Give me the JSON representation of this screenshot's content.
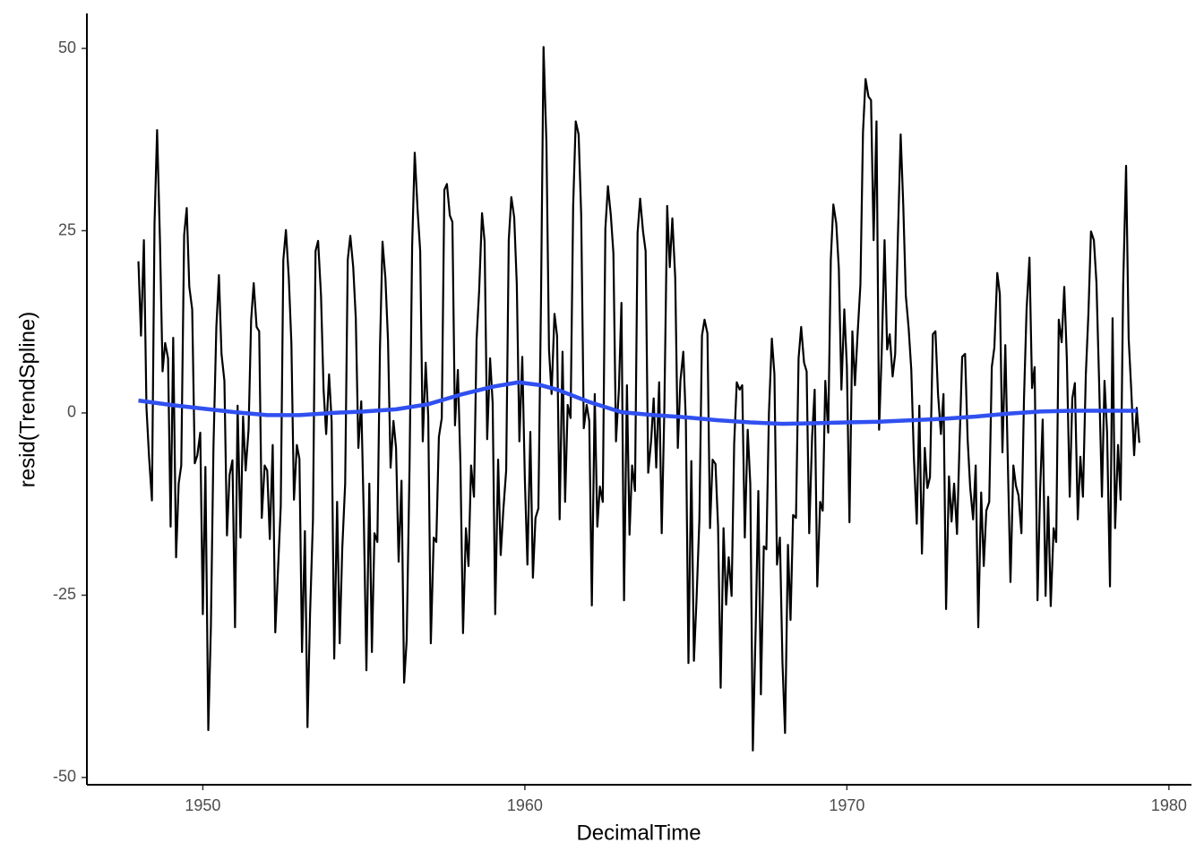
{
  "chart_data": {
    "type": "line",
    "x_label": "DecimalTime",
    "y_label": "resid(TrendSpline)",
    "xlim": [
      1946.4,
      1980.7
    ],
    "ylim": [
      -51,
      54.8
    ],
    "xticks": [
      1950,
      1960,
      1970,
      1980
    ],
    "yticks": [
      -50,
      -25,
      0,
      25,
      50
    ],
    "grid": false,
    "series": [
      {
        "color": "#000000",
        "width": 2.2,
        "x": [
          1948,
          1948.08,
          1948.17,
          1948.25,
          1948.33,
          1948.42,
          1948.5,
          1948.58,
          1948.67,
          1948.75,
          1948.83,
          1948.92,
          1949,
          1949.08,
          1949.17,
          1949.25,
          1949.33,
          1949.42,
          1949.5,
          1949.58,
          1949.67,
          1949.75,
          1949.83,
          1949.92,
          1950,
          1950.08,
          1950.17,
          1950.25,
          1950.33,
          1950.42,
          1950.5,
          1950.58,
          1950.67,
          1950.75,
          1950.83,
          1950.92,
          1951,
          1951.08,
          1951.17,
          1951.25,
          1951.33,
          1951.42,
          1951.5,
          1951.58,
          1951.67,
          1951.75,
          1951.83,
          1951.92,
          1952,
          1952.08,
          1952.17,
          1952.25,
          1952.33,
          1952.42,
          1952.5,
          1952.58,
          1952.67,
          1952.75,
          1952.83,
          1952.92,
          1953,
          1953.08,
          1953.17,
          1953.25,
          1953.33,
          1953.42,
          1953.5,
          1953.58,
          1953.67,
          1953.75,
          1953.83,
          1953.92,
          1954,
          1954.08,
          1954.17,
          1954.25,
          1954.33,
          1954.42,
          1954.5,
          1954.58,
          1954.67,
          1954.75,
          1954.83,
          1954.92,
          1955,
          1955.08,
          1955.17,
          1955.25,
          1955.33,
          1955.42,
          1955.5,
          1955.58,
          1955.67,
          1955.75,
          1955.83,
          1955.92,
          1956,
          1956.08,
          1956.17,
          1956.25,
          1956.33,
          1956.42,
          1956.5,
          1956.58,
          1956.67,
          1956.75,
          1956.83,
          1956.92,
          1957,
          1957.08,
          1957.17,
          1957.25,
          1957.33,
          1957.42,
          1957.5,
          1957.58,
          1957.67,
          1957.75,
          1957.83,
          1957.92,
          1958,
          1958.08,
          1958.17,
          1958.25,
          1958.33,
          1958.42,
          1958.5,
          1958.58,
          1958.67,
          1958.75,
          1958.83,
          1958.92,
          1959,
          1959.08,
          1959.17,
          1959.25,
          1959.33,
          1959.42,
          1959.5,
          1959.58,
          1959.67,
          1959.75,
          1959.83,
          1959.92,
          1960,
          1960.08,
          1960.17,
          1960.25,
          1960.33,
          1960.42,
          1960.5,
          1960.58,
          1960.67,
          1960.75,
          1960.83,
          1960.92,
          1961,
          1961.08,
          1961.17,
          1961.25,
          1961.33,
          1961.42,
          1961.5,
          1961.58,
          1961.67,
          1961.75,
          1961.83,
          1961.92,
          1962,
          1962.08,
          1962.17,
          1962.25,
          1962.33,
          1962.42,
          1962.5,
          1962.58,
          1962.67,
          1962.75,
          1962.83,
          1962.92,
          1963,
          1963.08,
          1963.17,
          1963.25,
          1963.33,
          1963.42,
          1963.5,
          1963.58,
          1963.67,
          1963.75,
          1963.83,
          1963.92,
          1964,
          1964.08,
          1964.17,
          1964.25,
          1964.33,
          1964.42,
          1964.5,
          1964.58,
          1964.67,
          1964.75,
          1964.83,
          1964.92,
          1965,
          1965.08,
          1965.17,
          1965.25,
          1965.33,
          1965.42,
          1965.5,
          1965.58,
          1965.67,
          1965.75,
          1965.83,
          1965.92,
          1966,
          1966.08,
          1966.17,
          1966.25,
          1966.33,
          1966.42,
          1966.5,
          1966.58,
          1966.67,
          1966.75,
          1966.83,
          1966.92,
          1967,
          1967.08,
          1967.17,
          1967.25,
          1967.33,
          1967.42,
          1967.5,
          1967.58,
          1967.67,
          1967.75,
          1967.83,
          1967.92,
          1968,
          1968.08,
          1968.17,
          1968.25,
          1968.33,
          1968.42,
          1968.5,
          1968.58,
          1968.67,
          1968.75,
          1968.83,
          1968.92,
          1969,
          1969.08,
          1969.17,
          1969.25,
          1969.33,
          1969.42,
          1969.5,
          1969.58,
          1969.67,
          1969.75,
          1969.83,
          1969.92,
          1970,
          1970.08,
          1970.17,
          1970.25,
          1970.33,
          1970.42,
          1970.5,
          1970.58,
          1970.67,
          1970.75,
          1970.83,
          1970.92,
          1971,
          1971.08,
          1971.17,
          1971.25,
          1971.33,
          1971.42,
          1971.5,
          1971.58,
          1971.67,
          1971.75,
          1971.83,
          1971.92,
          1972,
          1972.08,
          1972.17,
          1972.25,
          1972.33,
          1972.42,
          1972.5,
          1972.58,
          1972.67,
          1972.75,
          1972.83,
          1972.92,
          1973,
          1973.08,
          1973.17,
          1973.25,
          1973.33,
          1973.42,
          1973.5,
          1973.58,
          1973.67,
          1973.75,
          1973.83,
          1973.92,
          1974,
          1974.08,
          1974.17,
          1974.25,
          1974.33,
          1974.42,
          1974.5,
          1974.58,
          1974.67,
          1974.75,
          1974.83,
          1974.92,
          1975,
          1975.08,
          1975.17,
          1975.25,
          1975.33,
          1975.42,
          1975.5,
          1975.58,
          1975.67,
          1975.75,
          1975.83,
          1975.92,
          1976,
          1976.08,
          1976.17,
          1976.25,
          1976.33,
          1976.42,
          1976.5,
          1976.58,
          1976.67,
          1976.75,
          1976.83,
          1976.92,
          1977,
          1977.08,
          1977.17,
          1977.25,
          1977.33,
          1977.42,
          1977.5,
          1977.58,
          1977.67,
          1977.75,
          1977.83,
          1977.92,
          1978,
          1978.08,
          1978.17,
          1978.25,
          1978.33,
          1978.42,
          1978.5,
          1978.58,
          1978.67,
          1978.75,
          1978.83,
          1978.92,
          1979,
          1979.08
        ],
        "values": [
          20.8,
          10.6,
          23.7,
          0.7,
          -6,
          -12,
          26,
          38.8,
          23.5,
          5.7,
          9.6,
          7.5,
          -15.6,
          10.3,
          -19.8,
          -9.7,
          -7.2,
          24.4,
          28.1,
          17.3,
          14.2,
          -6.9,
          -5.8,
          -2.7,
          -27.6,
          -7.4,
          -43.5,
          -29.4,
          -4.8,
          11.8,
          18.9,
          8.1,
          4.4,
          -16.8,
          -8.5,
          -6.5,
          -29.4,
          1,
          -17.1,
          -0.5,
          -7.9,
          -2.3,
          12.7,
          17.8,
          11.8,
          11.2,
          -14.4,
          -7.2,
          -7.9,
          -17.3,
          -4.4,
          -30.1,
          -22,
          -12.8,
          21,
          25.1,
          18.5,
          9.6,
          -11.9,
          -4.4,
          -6.3,
          -32.8,
          -16.2,
          -43.1,
          -27.5,
          -14.6,
          22.2,
          23.6,
          16.1,
          3.2,
          -2.9,
          5.3,
          -1.1,
          -33.7,
          -12.2,
          -31.6,
          -18.6,
          -9.7,
          21,
          24.3,
          20,
          13,
          -4.8,
          1.6,
          -14.6,
          -35.3,
          -9.7,
          -32.8,
          -16.5,
          -17.7,
          8.7,
          23.5,
          18.5,
          10,
          -7.5,
          -1.1,
          -4.8,
          -20.4,
          -9.3,
          -37,
          -31.2,
          -7.2,
          22.9,
          35.7,
          27.8,
          22.2,
          -3.9,
          6.9,
          -0.5,
          -31.6,
          -17.1,
          -17.7,
          -3.3,
          -0.7,
          30.6,
          31.4,
          27.1,
          26.2,
          -1.7,
          5.9,
          -7.2,
          -30.2,
          -15.8,
          -21,
          -7.2,
          -11.5,
          10,
          16.7,
          27.4,
          23.5,
          -3.6,
          7.5,
          1.4,
          -27.6,
          -6.4,
          -19.5,
          -13.4,
          -7.9,
          23.7,
          29.6,
          26.8,
          17.6,
          -3.9,
          7.7,
          -9.1,
          -20.8,
          -2.6,
          -22.6,
          -14.4,
          -13.1,
          14.9,
          50.2,
          37,
          8.7,
          2.6,
          13.6,
          10.6,
          -14.6,
          8.4,
          -12.2,
          1.1,
          -0.7,
          28.4,
          40,
          38.2,
          27.1,
          -2.1,
          1.1,
          -1.1,
          -26.4,
          2.6,
          -15.6,
          -10.1,
          -12.2,
          25.3,
          31.1,
          27.1,
          21.9,
          -3.9,
          3.2,
          15.1,
          -25.7,
          3.8,
          -16.7,
          -7.2,
          -10.7,
          24.7,
          29.4,
          24.9,
          22.2,
          -8.2,
          -3.9,
          2,
          -7.5,
          4.2,
          -16.5,
          0.1,
          28.4,
          20,
          26.7,
          18.5,
          -4.8,
          4.4,
          8.4,
          -1.1,
          -34.3,
          -6.6,
          -34,
          -25.7,
          -14.6,
          10.6,
          12.8,
          10.9,
          -15.8,
          -6.4,
          -7,
          -15.6,
          -37.7,
          -15.8,
          -26.3,
          -19.8,
          -25.1,
          -4.2,
          4.2,
          3.2,
          3.8,
          -17.1,
          -2.3,
          -9.7,
          -46.3,
          -29.1,
          -10.7,
          -38.6,
          -18.3,
          -18.7,
          0.1,
          10.2,
          5.3,
          -20.8,
          -17.1,
          -34.3,
          -43.9,
          -18.1,
          -28.4,
          -14,
          -14.4,
          7.5,
          11.8,
          6.9,
          5.7,
          -16.5,
          -3.3,
          3.2,
          -23.8,
          -12.2,
          -13.4,
          4.4,
          -2.7,
          21,
          28.6,
          26,
          19.8,
          3.2,
          14.2,
          6.3,
          -15,
          11.2,
          3.8,
          10.6,
          17.6,
          38.5,
          45.8,
          43.4,
          42.9,
          23.7,
          40,
          -2.3,
          8.1,
          23.7,
          8.7,
          10.8,
          5,
          8.1,
          23.5,
          38.2,
          28.6,
          16.1,
          11.5,
          5.9,
          -6,
          -15.2,
          1,
          -19.3,
          -4.8,
          -10.3,
          -8.8,
          10.8,
          11.2,
          2.6,
          -2.9,
          2.6,
          -26.9,
          -8.7,
          -14.9,
          -9.7,
          -16.6,
          -3.9,
          7.7,
          8.1,
          -3.6,
          -10.3,
          -14.6,
          -7.2,
          -29.4,
          -10.9,
          -21,
          -13.4,
          -12.2,
          6.3,
          9,
          19.2,
          16.3,
          -5.4,
          9.3,
          -7.2,
          -23.2,
          -7.2,
          -10,
          -11.3,
          -16.5,
          2,
          14.2,
          21.3,
          3.4,
          6.3,
          -25.7,
          -10.7,
          -0.9,
          -25.1,
          -11.5,
          -26.5,
          -15.8,
          -17.7,
          12.8,
          9.7,
          17.3,
          7.5,
          -11.5,
          2,
          4.1,
          -14.6,
          -6,
          -11.5,
          5.3,
          13.6,
          24.9,
          23.7,
          17.9,
          4.7,
          -11.5,
          4.4,
          -2.7,
          -23.8,
          13,
          -15.8,
          -4.4,
          -11.9,
          17.6,
          33.9,
          10.2,
          3.2,
          -5.8,
          0.7,
          -4.1
        ]
      },
      {
        "color": "#3050f0",
        "width": 4.5,
        "x": [
          1948,
          1949,
          1950,
          1951,
          1952,
          1953,
          1954,
          1955,
          1956,
          1957,
          1958,
          1959,
          1959.8,
          1960.5,
          1961,
          1962,
          1963,
          1964,
          1965,
          1966,
          1967,
          1968,
          1969,
          1970,
          1971,
          1972,
          1973,
          1974,
          1975,
          1976,
          1977,
          1978,
          1979
        ],
        "values": [
          1.7,
          1.1,
          0.6,
          0.1,
          -0.3,
          -0.3,
          0,
          0.2,
          0.5,
          1.2,
          2.5,
          3.6,
          4.2,
          3.8,
          3.2,
          1.5,
          0.1,
          -0.3,
          -0.6,
          -1,
          -1.3,
          -1.5,
          -1.4,
          -1.3,
          -1.2,
          -1,
          -0.8,
          -0.5,
          -0.1,
          0.2,
          0.3,
          0.3,
          0.3
        ]
      }
    ]
  }
}
